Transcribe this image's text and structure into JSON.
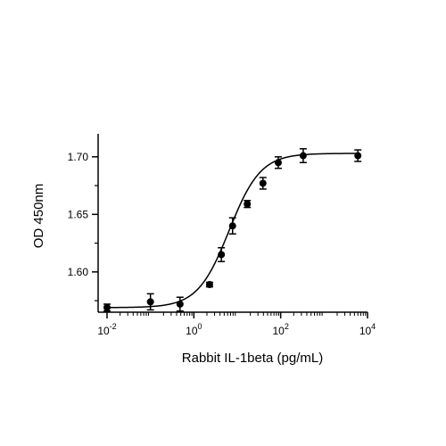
{
  "chart_data": {
    "type": "scatter",
    "title": "",
    "xlabel": "Rabbit IL-1beta (pg/mL)",
    "ylabel": "OD 450nm",
    "x_scale": "log",
    "xlim": [
      0.01,
      10000
    ],
    "ylim": [
      1.565,
      1.72
    ],
    "x_ticks": [
      {
        "base": "10",
        "exp": "-2",
        "value": 0.01
      },
      {
        "base": "10",
        "exp": "0",
        "value": 1
      },
      {
        "base": "10",
        "exp": "2",
        "value": 100
      },
      {
        "base": "10",
        "exp": "4",
        "value": 10000
      }
    ],
    "y_ticks": [
      {
        "label": "1.60",
        "value": 1.6
      },
      {
        "label": "1.65",
        "value": 1.65
      },
      {
        "label": "1.70",
        "value": 1.7
      }
    ],
    "grid": false,
    "series": [
      {
        "x": [
          0.01,
          0.1,
          0.48,
          2.3,
          4.3,
          7.8,
          17,
          39,
          88,
          330,
          6000
        ],
        "y": [
          1.569,
          1.574,
          1.572,
          1.589,
          1.615,
          1.64,
          1.659,
          1.677,
          1.695,
          1.701,
          1.701
        ],
        "error": [
          0.003,
          0.007,
          0.006,
          0.002,
          0.006,
          0.007,
          0.003,
          0.005,
          0.005,
          0.006,
          0.005
        ],
        "fit": "four-parameter logistic"
      }
    ]
  }
}
